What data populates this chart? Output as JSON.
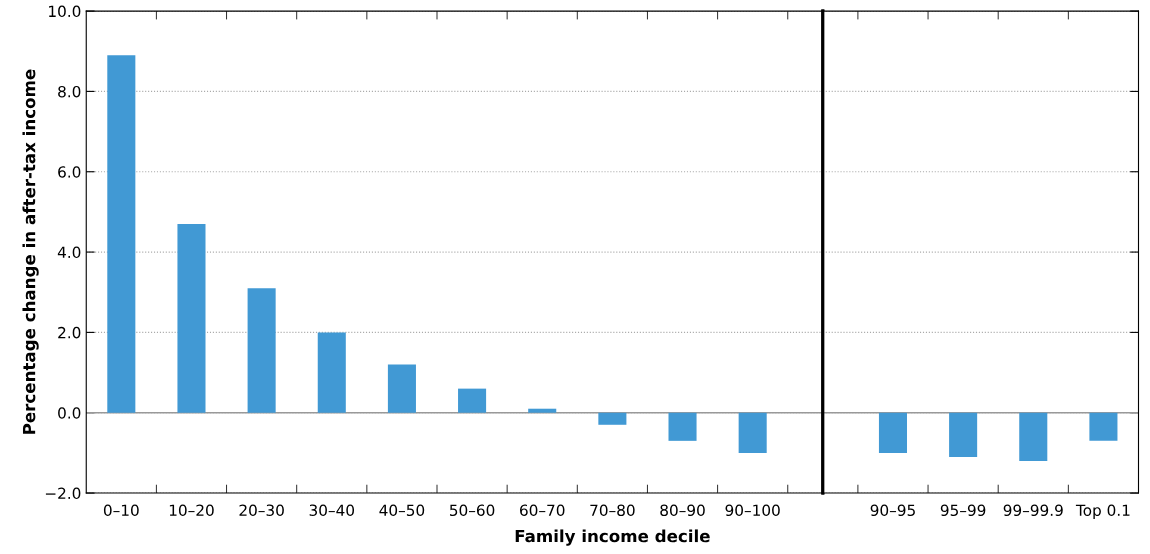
{
  "chart_data": [
    {
      "type": "bar",
      "categories": [
        "0–10",
        "10–20",
        "20–30",
        "30–40",
        "40–50",
        "50–60",
        "60–70",
        "70–80",
        "80–90",
        "90–100"
      ],
      "values": [
        8.9,
        4.7,
        3.1,
        2.0,
        1.2,
        0.6,
        0.1,
        -0.3,
        -0.7,
        -1.0
      ],
      "color": "#4199d4",
      "xlabel": "Family income decile",
      "ylabel": "Percentage change in after-tax income",
      "ylim": [
        -2,
        10
      ],
      "yticks": [
        {
          "value": -2,
          "label": "−2.0"
        },
        {
          "value": 0,
          "label": "0.0"
        },
        {
          "value": 2,
          "label": "2.0"
        },
        {
          "value": 4,
          "label": "4.0"
        },
        {
          "value": 6,
          "label": "6.0"
        },
        {
          "value": 8,
          "label": "8.0"
        },
        {
          "value": 10,
          "label": "10.0"
        }
      ],
      "grid": "y"
    },
    {
      "type": "bar",
      "categories": [
        "90–95",
        "95–99",
        "99–99.9",
        "Top 0.1"
      ],
      "values": [
        -1.0,
        -1.1,
        -1.2,
        -0.7
      ],
      "color": "#4199d4",
      "ylim": [
        -2,
        10
      ],
      "yticks": [
        {
          "value": -2,
          "label": null
        },
        {
          "value": 0,
          "label": null
        },
        {
          "value": 2,
          "label": null
        },
        {
          "value": 4,
          "label": null
        },
        {
          "value": 6,
          "label": null
        },
        {
          "value": 8,
          "label": null
        },
        {
          "value": 10,
          "label": null
        }
      ],
      "grid": "y",
      "tick_labels": "x"
    }
  ]
}
